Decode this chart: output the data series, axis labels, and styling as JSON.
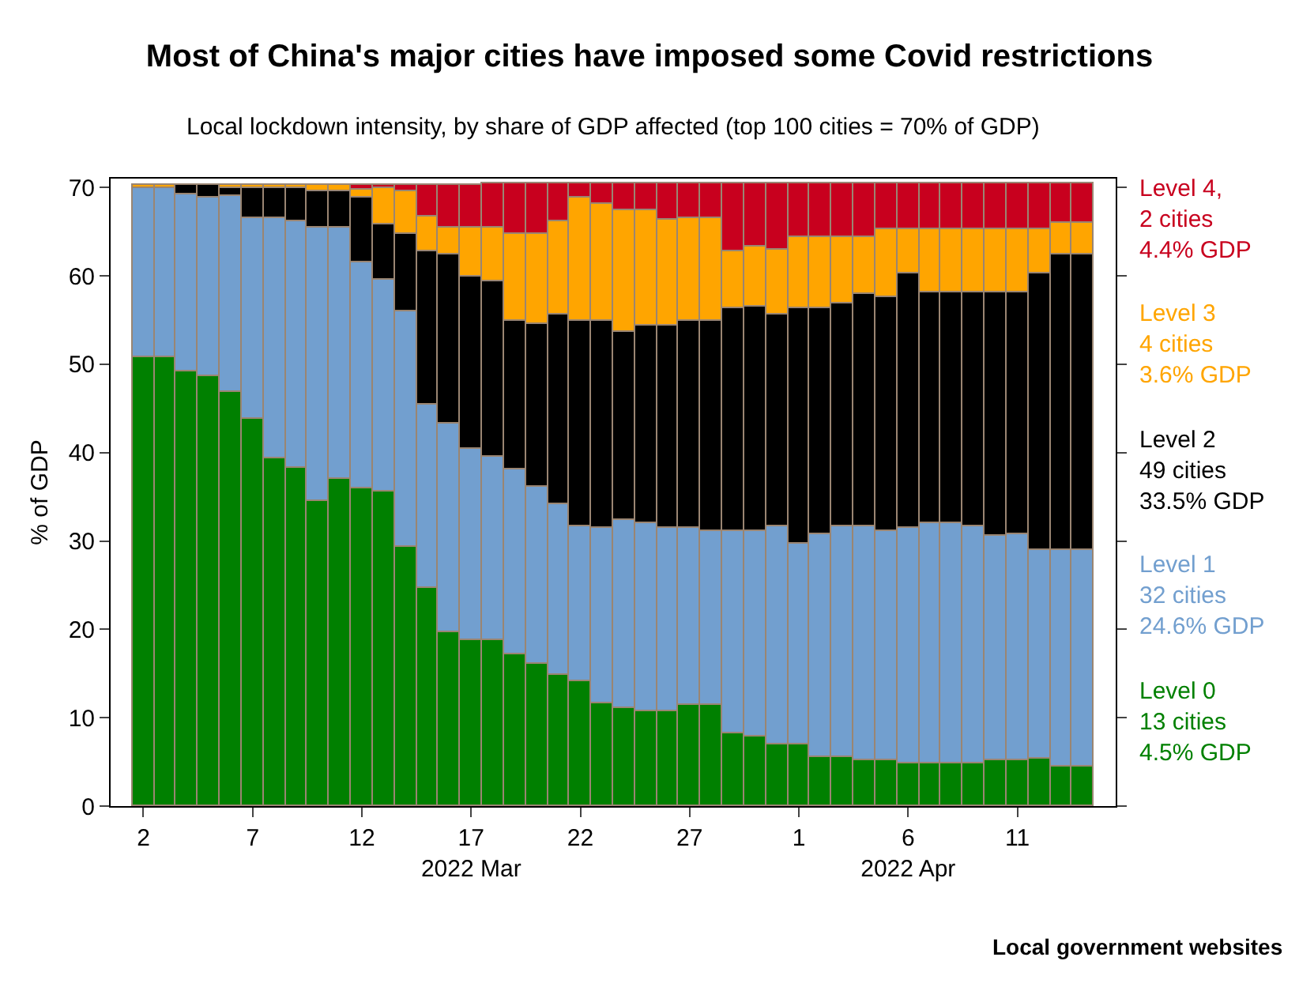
{
  "chart_data": {
    "type": "bar",
    "stacked": true,
    "title": "Most of China's major cities have imposed some Covid restrictions",
    "subtitle": "Local lockdown intensity, by share of GDP affected (top 100 cities = 70% of GDP)",
    "ylabel": "% of GDP",
    "x": [
      "2022-03-02",
      "2022-03-03",
      "2022-03-04",
      "2022-03-05",
      "2022-03-06",
      "2022-03-07",
      "2022-03-08",
      "2022-03-09",
      "2022-03-10",
      "2022-03-11",
      "2022-03-12",
      "2022-03-13",
      "2022-03-14",
      "2022-03-15",
      "2022-03-16",
      "2022-03-17",
      "2022-03-18",
      "2022-03-19",
      "2022-03-20",
      "2022-03-21",
      "2022-03-22",
      "2022-03-23",
      "2022-03-24",
      "2022-03-25",
      "2022-03-26",
      "2022-03-27",
      "2022-03-28",
      "2022-03-29",
      "2022-03-30",
      "2022-03-31",
      "2022-04-01",
      "2022-04-02",
      "2022-04-03",
      "2022-04-04",
      "2022-04-05",
      "2022-04-06",
      "2022-04-07",
      "2022-04-08",
      "2022-04-09",
      "2022-04-10",
      "2022-04-11",
      "2022-04-12",
      "2022-04-13",
      "2022-04-14"
    ],
    "series": [
      {
        "name": "Level 0\n13 cities\n4.5% GDP",
        "color": "#008000",
        "values": [
          50.8,
          50.8,
          49.1,
          48.7,
          46.9,
          43.8,
          39.3,
          38.3,
          34.6,
          37.0,
          35.9,
          35.6,
          29.4,
          24.6,
          19.7,
          18.8,
          18.8,
          17.2,
          16.1,
          14.8,
          14.1,
          11.7,
          11.1,
          10.7,
          10.7,
          11.4,
          11.4,
          8.3,
          7.9,
          7.0,
          7.0,
          5.5,
          5.5,
          5.1,
          5.1,
          4.8,
          4.8,
          4.8,
          4.8,
          5.1,
          5.1,
          5.4,
          4.5,
          4.5
        ]
      },
      {
        "name": "Level 1\n32 cities\n24.6% GDP",
        "color": "#729fcf",
        "values": [
          19.1,
          19.1,
          20.2,
          20.1,
          22.2,
          22.7,
          27.2,
          27.8,
          30.9,
          28.5,
          25.6,
          24.0,
          26.6,
          20.8,
          23.5,
          21.6,
          20.7,
          20.9,
          20.1,
          19.4,
          17.6,
          19.7,
          21.2,
          21.3,
          20.7,
          20.0,
          19.7,
          22.8,
          23.2,
          24.7,
          22.6,
          25.2,
          26.2,
          26.6,
          26.0,
          26.6,
          27.2,
          27.2,
          26.8,
          25.4,
          25.6,
          23.6,
          24.5,
          24.5
        ]
      },
      {
        "name": "Level 2\n49 cities\n33.5% GDP",
        "color": "#000000",
        "values": [
          0,
          0,
          1.0,
          1.5,
          0.8,
          3.4,
          3.4,
          3.8,
          4.0,
          4.0,
          7.4,
          6.3,
          8.8,
          17.3,
          19.2,
          19.5,
          19.8,
          16.8,
          18.3,
          21.5,
          23.2,
          23.5,
          21.4,
          22.3,
          22.9,
          23.5,
          23.8,
          25.2,
          25.4,
          24.0,
          26.8,
          25.7,
          25.1,
          26.2,
          26.4,
          28.9,
          26.2,
          26.2,
          26.6,
          27.7,
          27.5,
          31.3,
          33.4,
          33.4
        ]
      },
      {
        "name": "Level 3\n4 cities\n3.6% GDP",
        "color": "#ffa500",
        "values": [
          0.4,
          0.4,
          0,
          0,
          0.4,
          0.4,
          0.4,
          0.4,
          0.8,
          0.8,
          0.8,
          4.0,
          4.7,
          4.0,
          3.1,
          5.6,
          6.2,
          9.8,
          10.2,
          10.4,
          13.9,
          13.2,
          13.7,
          13.1,
          12.1,
          11.6,
          11.6,
          6.4,
          6.9,
          7.3,
          8.0,
          7.9,
          7.6,
          6.5,
          7.8,
          5.0,
          7.1,
          7.1,
          7.1,
          7.1,
          7.1,
          5.0,
          3.6,
          3.6
        ]
      },
      {
        "name": "Level 4,\n2 cities\n4.4% GDP",
        "color": "#c8001e",
        "values": [
          0,
          0,
          0,
          0,
          0,
          0,
          0,
          0,
          0,
          0,
          0.6,
          0.4,
          0.8,
          3.6,
          4.8,
          4.8,
          5.0,
          5.8,
          5.8,
          4.4,
          1.7,
          2.4,
          3.1,
          3.1,
          4.1,
          4.0,
          4.0,
          7.8,
          7.1,
          7.5,
          6.1,
          6.2,
          6.1,
          6.1,
          5.2,
          5.2,
          5.2,
          5.2,
          5.2,
          5.2,
          5.2,
          5.2,
          4.5,
          4.5
        ]
      }
    ],
    "xlim": [
      "2022-02-28T12:00",
      "2022-04-15T12:00"
    ],
    "xticks": [
      {
        "value": "2022-03-02",
        "label": "2"
      },
      {
        "value": "2022-03-07",
        "label": "7"
      },
      {
        "value": "2022-03-12",
        "label": "12"
      },
      {
        "value": "2022-03-17",
        "label": "17\n2022 Mar"
      },
      {
        "value": "2022-03-22",
        "label": "22"
      },
      {
        "value": "2022-03-27",
        "label": "27"
      },
      {
        "value": "2022-04-01",
        "label": "1"
      },
      {
        "value": "2022-04-06",
        "label": "6\n2022 Apr"
      },
      {
        "value": "2022-04-11",
        "label": "11"
      }
    ],
    "ylim": [
      0,
      71
    ],
    "yticks": [
      0,
      10,
      20,
      30,
      40,
      50,
      60,
      70
    ],
    "annotations": [
      "Local government websites"
    ]
  }
}
